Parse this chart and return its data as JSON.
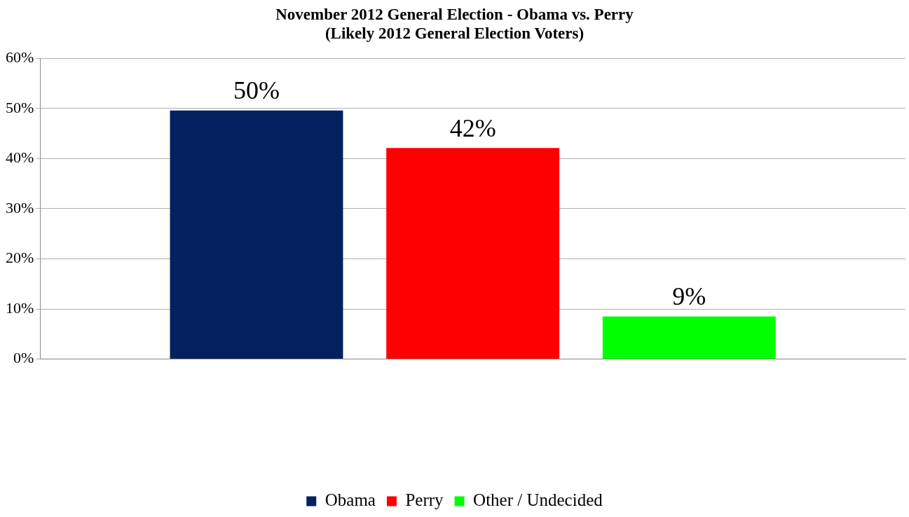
{
  "chart_data": {
    "type": "bar",
    "title": "November 2012 General Election - Obama vs. Perry",
    "subtitle": "(Likely 2012 General Election Voters)",
    "categories": [
      null
    ],
    "series": [
      {
        "name": "Obama",
        "color": "#03215e",
        "values": [
          49.6
        ],
        "value_labels": [
          "50%"
        ]
      },
      {
        "name": "Perry",
        "color": "#ff0000",
        "values": [
          42.1
        ],
        "value_labels": [
          "42%"
        ]
      },
      {
        "name": "Other / Undecided",
        "color": "#00ff00",
        "values": [
          8.5
        ],
        "value_labels": [
          "9%"
        ]
      }
    ],
    "ylim": [
      0,
      60
    ],
    "yticks": [
      {
        "value": 0,
        "label": "0%"
      },
      {
        "value": 10,
        "label": "10%"
      },
      {
        "value": 20,
        "label": "20%"
      },
      {
        "value": 30,
        "label": "30%"
      },
      {
        "value": 40,
        "label": "40%"
      },
      {
        "value": 50,
        "label": "50%"
      },
      {
        "value": 60,
        "label": "60%"
      }
    ],
    "grid": "y",
    "legend": "bottom"
  }
}
